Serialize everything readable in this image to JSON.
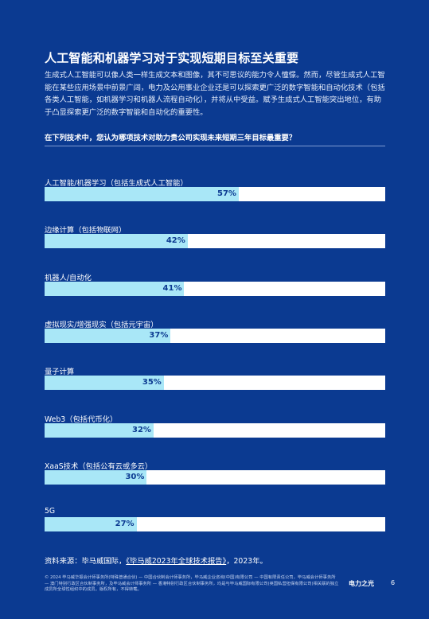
{
  "header": {
    "title": "人工智能和机器学习对于实现短期目标至关重要",
    "intro": "生成式人工智能可以像人类一样生成文本和图像，其不可思议的能力令人憧憬。然而，尽管生成式人工智能在某些应用场景中前景广阔，电力及公用事业企业还是可以探索更广泛的数字智能和自动化技术（包括各类人工智能，如机器学习和机器人流程自动化），并将从中受益。赋予生成式人工智能突出地位，有助于凸显探索更广泛的数字智能和自动化的重要性。"
  },
  "question": "在下列技术中，您认为哪项技术对助力贵公司实现未来短期三年目标最重要？",
  "chart_data": {
    "type": "bar",
    "orientation": "horizontal",
    "categories": [
      "人工智能/机器学习（包括生成式人工智能）",
      "边缘计算（包括物联网）",
      "机器人/自动化",
      "虚拟现实/增强现实（包括元宇宙）",
      "量子计算",
      "Web3（包括代币化）",
      "XaaS技术（包括公有云或多云）",
      "5G"
    ],
    "values": [
      57,
      42,
      41,
      37,
      35,
      32,
      30,
      27
    ],
    "value_labels": [
      "57%",
      "42%",
      "41%",
      "37%",
      "35%",
      "32%",
      "30%",
      "27%"
    ],
    "unit": "%",
    "xlim": [
      0,
      100
    ],
    "colors": {
      "bar": "#a9e7f7",
      "track": "#ffffff",
      "background": "#0b3a91",
      "value_text": "#0b3a91"
    }
  },
  "source": {
    "prefix": "资料来源：毕马威国际，",
    "link": "《毕马威2023年全球技术报告》",
    "suffix": "，2023年。"
  },
  "footer": {
    "legal": "© 2024 毕马威华振会计师事务所(特殊普通合伙) — 中国合伙制会计师事务所，毕马威企业咨询(中国)有限公司 — 中国有限责任公司，毕马威会计师事务所 — 澳门特别行政区合伙制事务所，及毕马威会计师事务所 — 香港特别行政区合伙制事务所，均是与毕马威国际有限公司(英国私营担保有限公司)相关联的独立成员所全球性组织中的成员。版权所有，不得转载。",
    "brand": "电力之光",
    "page": "6"
  }
}
